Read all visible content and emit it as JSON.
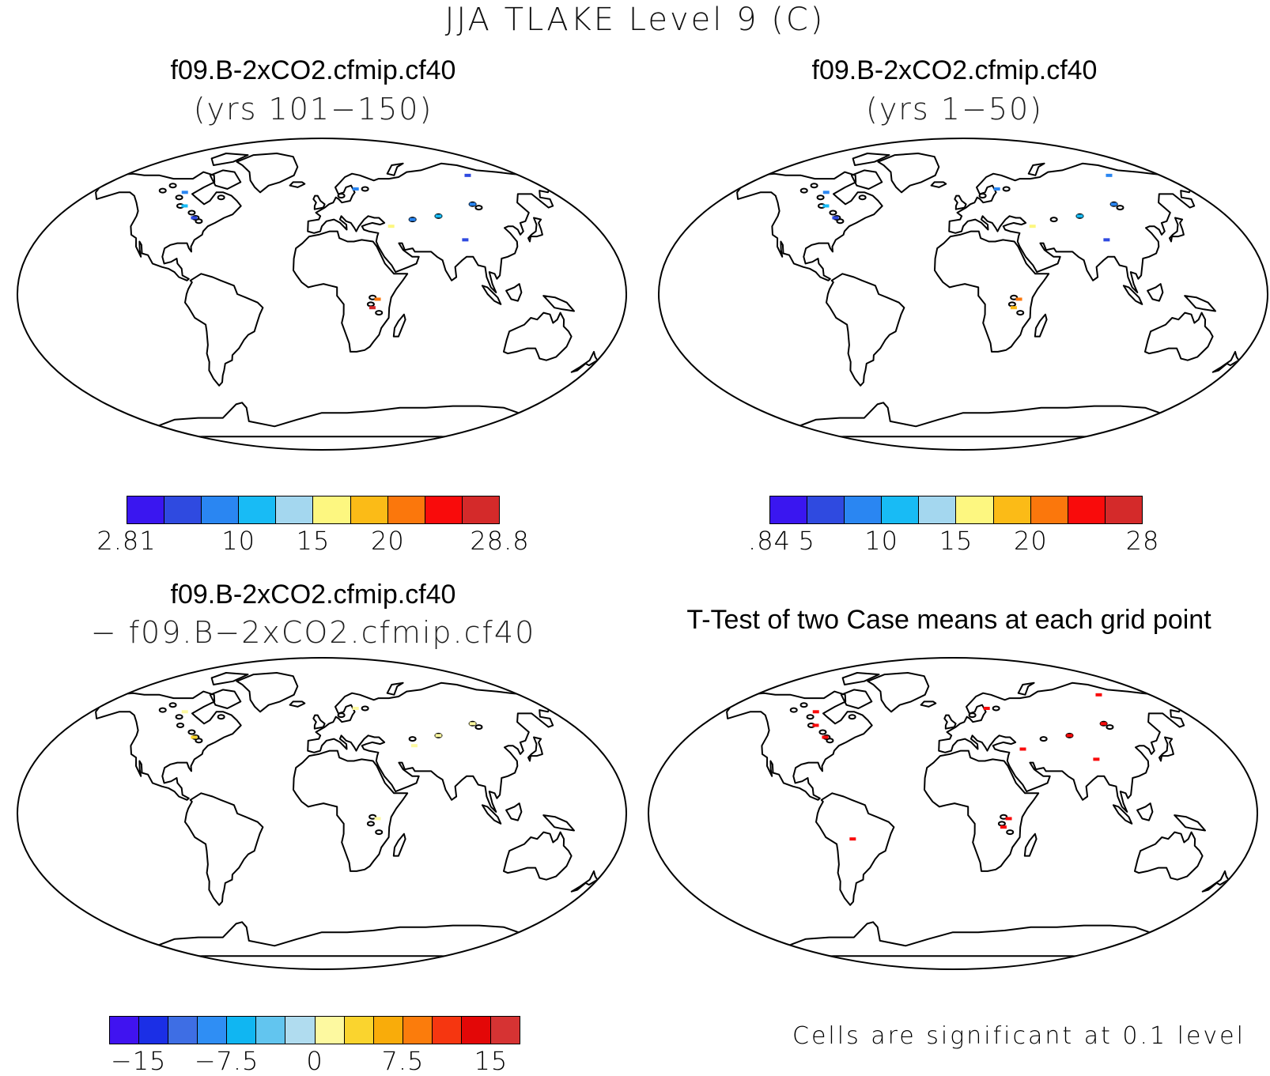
{
  "title": "JJA TLAKE Level 9 (C)",
  "panels": {
    "top_left": {
      "title": "f09.B-2xCO2.cfmip.cf40",
      "subtitle": "(yrs 101−150)"
    },
    "top_right": {
      "title": "f09.B-2xCO2.cfmip.cf40",
      "subtitle": "(yrs 1−50)"
    },
    "bottom_left": {
      "title": "f09.B-2xCO2.cfmip.cf40",
      "subtitle": "− f09.B−2xCO2.cfmip.cf40"
    },
    "bottom_right": {
      "title": "T-Test of two Case means at each grid point",
      "note": "Cells are significant at 0.1 level"
    }
  },
  "colorbars": {
    "top_left": {
      "colors": [
        "#3a16f0",
        "#2f4ae0",
        "#2a86f2",
        "#18bbf5",
        "#a4d7ef",
        "#fdf780",
        "#fbbb17",
        "#fb770c",
        "#f90b0b",
        "#d42a2a"
      ],
      "labels": [
        "2.81",
        "10",
        "15",
        "20",
        "28.8"
      ]
    },
    "top_right": {
      "colors": [
        "#3a16f0",
        "#2f4ae0",
        "#2a86f2",
        "#18bbf5",
        "#a4d7ef",
        "#fdf780",
        "#fbbb17",
        "#fb770c",
        "#f90b0b",
        "#d42a2a"
      ],
      "labels": [
        ".84",
        "5",
        "10",
        "15",
        "20",
        "28"
      ]
    },
    "bottom_left": {
      "colors": [
        "#4013f0",
        "#1b2fe6",
        "#3e6ee4",
        "#2f8ef4",
        "#10b6f2",
        "#62c5ef",
        "#b0dcef",
        "#fdf9a0",
        "#fad42e",
        "#f9ac0a",
        "#fb7c0c",
        "#f63610",
        "#e30707",
        "#d63333"
      ],
      "labels": [
        "−15",
        "−7.5",
        "0",
        "7.5",
        "15"
      ]
    }
  },
  "map_marks": {
    "top_left": [
      {
        "lon": -100,
        "lat": 60,
        "color": "#2a86f2"
      },
      {
        "lon": -85,
        "lat": 45,
        "color": "#2f4ae0"
      },
      {
        "lon": -95,
        "lat": 52,
        "color": "#18bbf5"
      },
      {
        "lon": 25,
        "lat": 62,
        "color": "#2a86f2"
      },
      {
        "lon": 33,
        "lat": -3,
        "color": "#fb770c"
      },
      {
        "lon": 30,
        "lat": -8,
        "color": "#d42a2a"
      },
      {
        "lon": 78,
        "lat": 46,
        "color": "#18bbf5"
      },
      {
        "lon": 105,
        "lat": 53,
        "color": "#2a86f2"
      },
      {
        "lon": 45,
        "lat": 40,
        "color": "#fdf780"
      },
      {
        "lon": 90,
        "lat": 32,
        "color": "#2f4ae0"
      },
      {
        "lon": 60,
        "lat": 44,
        "color": "#2a86f2"
      },
      {
        "lon": 115,
        "lat": 70,
        "color": "#2f4ae0"
      }
    ],
    "top_right": [
      {
        "lon": -100,
        "lat": 60,
        "color": "#2a86f2"
      },
      {
        "lon": -85,
        "lat": 45,
        "color": "#2f4ae0"
      },
      {
        "lon": -95,
        "lat": 52,
        "color": "#18bbf5"
      },
      {
        "lon": 25,
        "lat": 62,
        "color": "#2a86f2"
      },
      {
        "lon": 33,
        "lat": -3,
        "color": "#fb770c"
      },
      {
        "lon": 30,
        "lat": -8,
        "color": "#fbbb17"
      },
      {
        "lon": 78,
        "lat": 46,
        "color": "#18bbf5"
      },
      {
        "lon": 105,
        "lat": 53,
        "color": "#2a86f2"
      },
      {
        "lon": 45,
        "lat": 40,
        "color": "#fdf780"
      },
      {
        "lon": 90,
        "lat": 32,
        "color": "#2f4ae0"
      },
      {
        "lon": 115,
        "lat": 70,
        "color": "#2a86f2"
      }
    ],
    "bottom_left": [
      {
        "lon": -100,
        "lat": 60,
        "color": "#fdf9a0"
      },
      {
        "lon": -85,
        "lat": 45,
        "color": "#fad42e"
      },
      {
        "lon": 25,
        "lat": 62,
        "color": "#fdf9a0"
      },
      {
        "lon": 33,
        "lat": -3,
        "color": "#fdf9a0"
      },
      {
        "lon": 78,
        "lat": 46,
        "color": "#fdf9a0"
      },
      {
        "lon": 105,
        "lat": 53,
        "color": "#fdf9a0"
      },
      {
        "lon": 60,
        "lat": 40,
        "color": "#fdf9a0"
      }
    ],
    "bottom_right": [
      {
        "lon": -100,
        "lat": 60,
        "color": "#f90b0b"
      },
      {
        "lon": -85,
        "lat": 45,
        "color": "#f90b0b"
      },
      {
        "lon": -95,
        "lat": 52,
        "color": "#f90b0b"
      },
      {
        "lon": 25,
        "lat": 62,
        "color": "#f90b0b"
      },
      {
        "lon": 33,
        "lat": -3,
        "color": "#f90b0b"
      },
      {
        "lon": 30,
        "lat": -8,
        "color": "#f90b0b"
      },
      {
        "lon": 78,
        "lat": 46,
        "color": "#f90b0b"
      },
      {
        "lon": 105,
        "lat": 53,
        "color": "#f90b0b"
      },
      {
        "lon": 45,
        "lat": 38,
        "color": "#f90b0b"
      },
      {
        "lon": 90,
        "lat": 32,
        "color": "#f90b0b"
      },
      {
        "lon": 115,
        "lat": 70,
        "color": "#f90b0b"
      },
      {
        "lon": -60,
        "lat": -15,
        "color": "#f90b0b"
      }
    ]
  }
}
